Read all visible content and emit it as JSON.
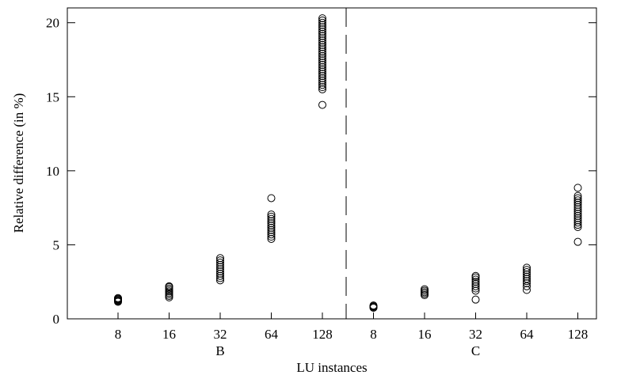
{
  "chart_data": {
    "type": "scatter",
    "xlabel": "LU instances",
    "ylabel": "Relative difference (in %)",
    "ylim": [
      0,
      21
    ],
    "y_ticks": [
      0,
      5,
      10,
      15,
      20
    ],
    "grid": false,
    "groups": [
      {
        "label": "B",
        "categories": [
          {
            "label": "8",
            "values": [
              1.15,
              1.2,
              1.25,
              1.3,
              1.35,
              1.4
            ]
          },
          {
            "label": "16",
            "values": [
              1.45,
              1.55,
              1.65,
              1.75,
              1.85,
              1.95,
              2.05,
              2.15,
              2.2
            ]
          },
          {
            "label": "32",
            "values": [
              2.6,
              2.75,
              2.9,
              3.05,
              3.2,
              3.35,
              3.5,
              3.65,
              3.8,
              3.95,
              4.1
            ]
          },
          {
            "label": "64",
            "values": [
              5.4,
              5.55,
              5.7,
              5.85,
              6.0,
              6.15,
              6.3,
              6.45,
              6.6,
              6.75,
              6.9,
              7.05,
              8.15
            ]
          },
          {
            "label": "128",
            "values": [
              14.45,
              15.5,
              15.65,
              15.8,
              15.95,
              16.1,
              16.25,
              16.4,
              16.55,
              16.7,
              16.85,
              17.0,
              17.15,
              17.3,
              17.45,
              17.6,
              17.75,
              17.9,
              18.05,
              18.2,
              18.35,
              18.5,
              18.65,
              18.8,
              18.95,
              19.1,
              19.25,
              19.4,
              19.55,
              19.7,
              19.85,
              20.0,
              20.15,
              20.3
            ]
          }
        ]
      },
      {
        "label": "C",
        "categories": [
          {
            "label": "8",
            "values": [
              0.75,
              0.8,
              0.85,
              0.9
            ]
          },
          {
            "label": "16",
            "values": [
              1.6,
              1.7,
              1.8,
              1.9,
              2.0
            ]
          },
          {
            "label": "32",
            "values": [
              1.3,
              1.9,
              2.05,
              2.2,
              2.35,
              2.5,
              2.65,
              2.8,
              2.9
            ]
          },
          {
            "label": "64",
            "values": [
              1.95,
              2.2,
              2.4,
              2.55,
              2.7,
              2.85,
              3.0,
              3.15,
              3.3,
              3.45
            ]
          },
          {
            "label": "128",
            "values": [
              5.2,
              6.2,
              6.35,
              6.5,
              6.65,
              6.8,
              6.95,
              7.1,
              7.25,
              7.4,
              7.55,
              7.7,
              7.85,
              8.0,
              8.15,
              8.3,
              8.85
            ]
          }
        ]
      }
    ]
  }
}
